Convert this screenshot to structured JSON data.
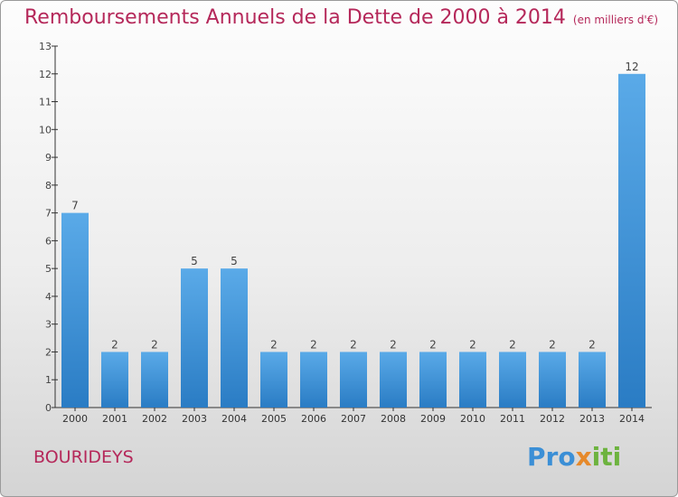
{
  "title": "Remboursements Annuels de la Dette de 2000 à 2014",
  "unit_note": "(en milliers d'€)",
  "town": "BOURIDEYS",
  "logo": {
    "p": "Pro",
    "x": "x",
    "i": "iti"
  },
  "colors": {
    "bar_light": "#5aaae8",
    "bar_dark": "#2a7cc4",
    "title": "#b5285a",
    "axis": "#333333"
  },
  "chart_data": {
    "type": "bar",
    "title": "Remboursements Annuels de la Dette de 2000 à 2014",
    "categories": [
      "2000",
      "2001",
      "2002",
      "2003",
      "2004",
      "2005",
      "2006",
      "2007",
      "2008",
      "2009",
      "2010",
      "2011",
      "2012",
      "2013",
      "2014"
    ],
    "values": [
      7,
      2,
      2,
      5,
      5,
      2,
      2,
      2,
      2,
      2,
      2,
      2,
      2,
      2,
      12
    ],
    "ylim": [
      0,
      13
    ],
    "yticks": [
      0,
      1,
      2,
      3,
      4,
      5,
      6,
      7,
      8,
      9,
      10,
      11,
      12,
      13
    ],
    "grid": false,
    "xlabel": "",
    "ylabel": ""
  }
}
